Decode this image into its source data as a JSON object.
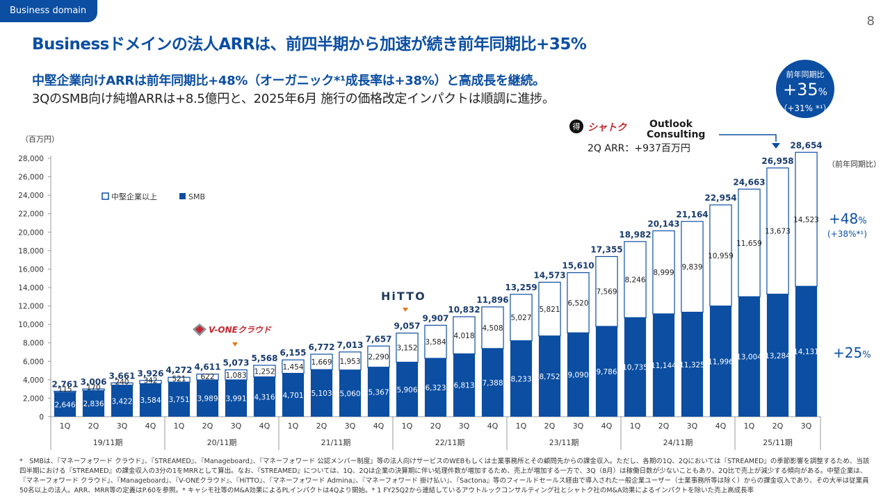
{
  "header": {
    "tag": "Business domain",
    "page_number": "8"
  },
  "title": "Businessドメインの法人ARRは、前四半期から加速が続き前年同期比+35%",
  "subtitle1": "中堅企業向けARRは前年同期比+48%（オーガニック*¹成長率は+38%）と高成長を継続。",
  "subtitle2": "3QのSMB向け純増ARRは+8.5億円と、2025年6月 施行の価格改定インパクトは順調に進捗。",
  "yoy_badge": {
    "label": "前年同期比",
    "value": "+35",
    "unit": "%",
    "organic": "（+31% *¹）"
  },
  "acquisition": {
    "logo1": "シャトク",
    "logo2_line1": "Outlook",
    "logo2_line2": "Consulting",
    "caption": "2Q ARR：+937百万円"
  },
  "hitto_logo": "HiTTO",
  "vone_logo": "V-ONEクラウド",
  "right_labels": {
    "header": "（前年同期比）",
    "mid_value": "+48",
    "mid_unit": "%",
    "mid_sub": "(+38%*¹)",
    "smb_value": "+25",
    "smb_unit": "%"
  },
  "colors": {
    "brand": "#0b4ea2",
    "smb": "#0b4ea2",
    "mid": "#ffffff",
    "marker": "#e07b18"
  },
  "chart_data": {
    "type": "bar",
    "stacked": true,
    "ylabel": "（百万円）",
    "ylim": [
      0,
      28000
    ],
    "yticks": [
      0,
      2000,
      4000,
      6000,
      8000,
      10000,
      12000,
      14000,
      16000,
      18000,
      20000,
      22000,
      24000,
      26000,
      28000
    ],
    "ytick_labels": [
      "0",
      "2,000",
      "4,000",
      "6,000",
      "8,000",
      "10,000",
      "12,000",
      "14,000",
      "16,000",
      "18,000",
      "20,000",
      "22,000",
      "24,000",
      "26,000",
      "28,000"
    ],
    "legend": [
      "中堅企業以上",
      "SMB"
    ],
    "quarters": [
      "1Q",
      "2Q",
      "3Q",
      "4Q",
      "1Q",
      "2Q",
      "3Q",
      "4Q",
      "1Q",
      "2Q",
      "3Q",
      "4Q",
      "1Q",
      "2Q",
      "3Q",
      "4Q",
      "1Q",
      "2Q",
      "3Q",
      "4Q",
      "1Q",
      "2Q",
      "3Q",
      "4Q",
      "1Q",
      "2Q",
      "3Q"
    ],
    "fiscal_years": [
      {
        "label": "19/11期",
        "count": 4
      },
      {
        "label": "20/11期",
        "count": 4
      },
      {
        "label": "21/11期",
        "count": 4
      },
      {
        "label": "22/11期",
        "count": 4
      },
      {
        "label": "23/11期",
        "count": 4
      },
      {
        "label": "24/11期",
        "count": 4
      },
      {
        "label": "25/11期",
        "count": 3
      }
    ],
    "series": [
      {
        "name": "SMB",
        "values": [
          2646,
          2836,
          3422,
          3584,
          3751,
          3989,
          3991,
          4316,
          4701,
          5103,
          5060,
          5367,
          5906,
          6323,
          6813,
          7388,
          8233,
          8752,
          9090,
          9786,
          10735,
          11144,
          11325,
          11996,
          13004,
          13284,
          14131
        ],
        "labels": [
          "2,646",
          "2,836",
          "3,422",
          "3,584",
          "3,751",
          "3,989",
          "3,991",
          "4,316",
          "4,701",
          "5,103",
          "5,060",
          "5,367",
          "5,906",
          "6,323",
          "6,813",
          "7,388",
          "8,233",
          "8,752",
          "9,090",
          "9,786",
          "10,735",
          "11,144",
          "11,325",
          "11,996",
          "13,004",
          "13,284",
          "14,131"
        ]
      },
      {
        "name": "中堅企業以上",
        "values": [
          115,
          170,
          240,
          342,
          521,
          622,
          1083,
          1252,
          1454,
          1669,
          1953,
          2290,
          3152,
          3584,
          4018,
          4508,
          5027,
          5821,
          6520,
          7569,
          8246,
          8999,
          9839,
          10959,
          11659,
          13673,
          14523
        ],
        "labels": [
          "115",
          "170",
          "240",
          "342",
          "521",
          "622",
          "1,083",
          "1,252",
          "1,454",
          "1,669",
          "1,953",
          "2,290",
          "3,152",
          "3,584",
          "4,018",
          "4,508",
          "5,027",
          "5,821",
          "6,520",
          "7,569",
          "8,246",
          "8,999",
          "9,839",
          "10,959",
          "11,659",
          "13,673",
          "14,523"
        ]
      }
    ],
    "totals": [
      2761,
      3006,
      3661,
      3926,
      4272,
      4611,
      5073,
      5568,
      6155,
      6772,
      7013,
      7657,
      9057,
      9907,
      10832,
      11896,
      13259,
      14573,
      15610,
      17355,
      18982,
      20143,
      21164,
      22954,
      24663,
      26958,
      28654
    ],
    "total_labels": [
      "2,761",
      "3,006",
      "3,661",
      "3,926",
      "4,272",
      "4,611",
      "5,073",
      "5,568",
      "6,155",
      "6,772",
      "7,013",
      "7,657",
      "9,057",
      "9,907",
      "10,832",
      "11,896",
      "13,259",
      "14,573",
      "15,610",
      "17,355",
      "18,982",
      "20,143",
      "21,164",
      "22,954",
      "24,663",
      "26,958",
      "28,654"
    ]
  },
  "footnote": "*　SMBは、『マネーフォワード クラウド』、『STREAMED』、『Manageboard』、『マネーフォワード 公認メンバー制度』等の法人向けサービスのWEBもしくは士業事務所とその顧問先からの課金収入。ただし、各期の1Q、2Qにおいては『STREAMED』の季節影響を調整するため、当該四半期における『STREAMED』の課金収入の3分の1をMRRとして算出。なお、『STREAMED』については、1Q、2Qは企業の決算期に伴い処理件数が増加するため、売上が増加する一方で、3Q（8月）は稼働日数が少ないこともあり、2Q比で売上が減少する傾向がある。中堅企業は、『マネーフォワード クラウド』、『Manageboard』、『V-ONEクラウド』、『HiTTO』、『マネーフォワード Admina』、『マネーフォワード 掛け払い』、『Sactona』等のフィールドセールス経由で導入された一般企業ユーザー（士業事務所等は除く）からの課金収入であり、その大半は従業員50名以上の法人。ARR、MRR等の定義はP.60を参照。* キャシモ社等のM&A効果によるPLインパクトは4Qより開始。* 1 FY25Q2から連結しているアウトルックコンサルティング社とシャトク社のM&A効果によるインパクトを除いた売上高成長率"
}
